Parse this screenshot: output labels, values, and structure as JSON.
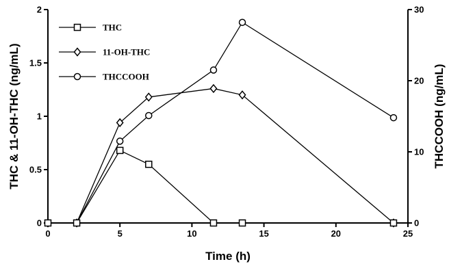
{
  "chart_data": {
    "type": "line",
    "xlabel": "Time (h)",
    "ylabel": "THC & 11-OH-THC (ng/mL)",
    "y2label": "THCCOOH (ng/mL)",
    "xlim": [
      0,
      25
    ],
    "ylim": [
      0,
      2
    ],
    "y2lim": [
      0,
      30
    ],
    "xticks": [
      "0",
      "5",
      "10",
      "15",
      "20",
      "25"
    ],
    "yticks": [
      "0",
      "0.5",
      "1",
      "1.5",
      "2"
    ],
    "y2ticks": [
      "0",
      "10",
      "20",
      "30"
    ],
    "grid": false,
    "legend_position": "top-left",
    "series": [
      {
        "name": "THC",
        "marker": "square",
        "axis": "left",
        "x": [
          0,
          2,
          5,
          7,
          11.5,
          13.5,
          24
        ],
        "y": [
          0,
          0,
          0.68,
          0.55,
          0,
          0,
          0
        ]
      },
      {
        "name": "11-OH-THC",
        "marker": "diamond",
        "axis": "left",
        "x": [
          0,
          2,
          5,
          7,
          11.5,
          13.5,
          24
        ],
        "y": [
          0,
          0,
          0.94,
          1.18,
          1.26,
          1.2,
          0
        ]
      },
      {
        "name": "THCCOOH",
        "marker": "circle",
        "axis": "right",
        "x": [
          0,
          2,
          5,
          7,
          11.5,
          13.5,
          24
        ],
        "y": [
          0,
          0,
          11.5,
          15.1,
          21.5,
          28.2,
          14.8
        ]
      }
    ]
  }
}
